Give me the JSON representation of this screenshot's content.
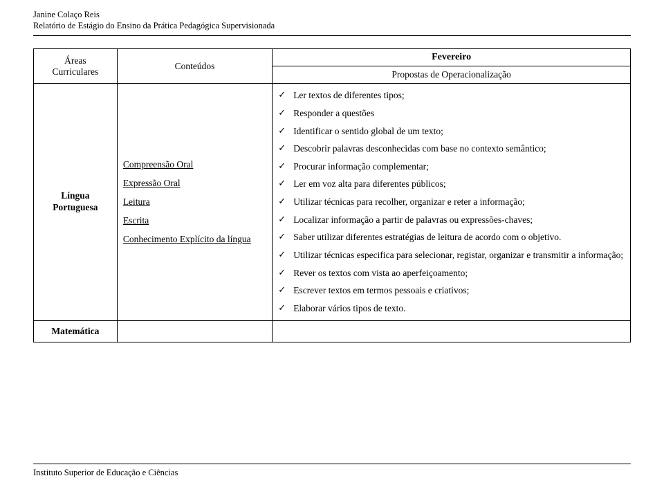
{
  "header": {
    "author": "Janine Colaço Reis",
    "report_title": "Relatório de Estágio do Ensino da Prática Pedagógica Supervisionada"
  },
  "table": {
    "headers": {
      "areas_line1": "Áreas",
      "areas_line2": "Curriculares",
      "conteudos": "Conteúdos",
      "month": "Fevereiro",
      "propostas": "Propostas de Operacionalização"
    },
    "row": {
      "area_line1": "Língua",
      "area_line2": "Portuguesa",
      "conteudos": [
        "Compreensão Oral",
        "Expressão Oral",
        "Leitura",
        "Escrita",
        "Conhecimento Explícito da língua"
      ],
      "propostas": [
        "Ler textos de diferentes tipos;",
        "Responder a questões",
        "Identificar o sentido global de um texto;",
        "Descobrir palavras desconhecidas com base no contexto semântico;",
        "Procurar informação complementar;",
        "Ler em voz alta para diferentes públicos;",
        "Utilizar técnicas para recolher, organizar e reter a informação;",
        "Localizar informação a partir de palavras ou expressões-chaves;",
        "Saber utilizar diferentes estratégias de leitura de acordo com o objetivo.",
        "Utilizar técnicas especifica para selecionar, registar, organizar e transmitir a informação;",
        "Rever os textos com vista ao aperfeiçoamento;",
        "Escrever textos em termos pessoais e criativos;",
        "Elaborar vários tipos de texto."
      ]
    },
    "row2": {
      "area": "Matemática"
    }
  },
  "footer": {
    "institution": "Instituto Superior de Educação e Ciências"
  }
}
